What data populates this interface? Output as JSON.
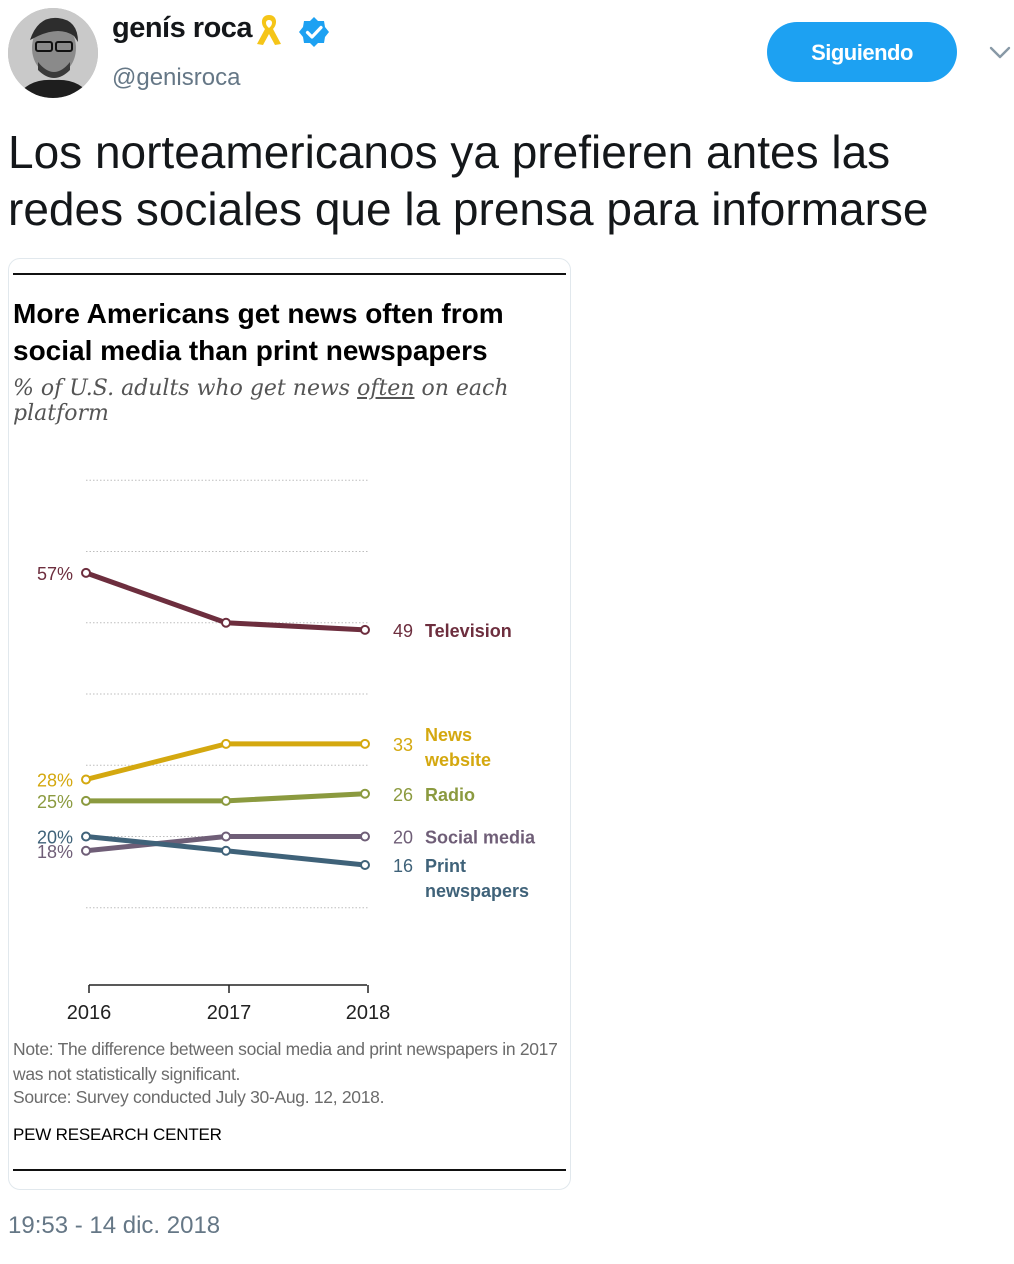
{
  "user": {
    "display_name": "genís roca",
    "handle": "@genisroca",
    "icons": [
      "yellow-ribbon-icon",
      "verified-icon"
    ],
    "colors": {
      "ribbon": "#f5c518",
      "verified": "#1da1f2"
    }
  },
  "follow_button": {
    "label": "Siguiendo",
    "color": "#1da1f2"
  },
  "more_menu": {
    "icon": "chevron-down-icon"
  },
  "tweet": {
    "text_lines": [
      "Los norteamericanos ya prefieren antes las",
      "redes sociales que la prensa para informarse"
    ],
    "timestamp": "19:53 - 14 dic. 2018"
  },
  "media": {
    "title": "More Americans get news often from social media than print newspapers",
    "subtitle_before": "% of U.S. adults who get news ",
    "subtitle_emphasis": "often",
    "subtitle_after": " on each platform",
    "note": "Note: The difference between social media and print newspapers in 2017 was not statistically significant.",
    "source": "Source: Survey conducted July 30-Aug. 12, 2018.",
    "organization": "PEW RESEARCH CENTER"
  },
  "chart_data": {
    "type": "line",
    "title": "More Americans get news often from social media than print newspapers",
    "subtitle": "% of U.S. adults who get news often on each platform",
    "x": [
      "2016",
      "2017",
      "2018"
    ],
    "ylim": [
      0,
      80
    ],
    "grid": true,
    "legend": "direct labels at right end of each line",
    "series": [
      {
        "name": "Television",
        "values": [
          57,
          50,
          49
        ],
        "start_label": "57%",
        "end_label": "49",
        "color": "#6d2e3e"
      },
      {
        "name": "News website",
        "values": [
          28,
          33,
          33
        ],
        "start_label": "28%",
        "end_label": "33",
        "color": "#d4a80f"
      },
      {
        "name": "Radio",
        "values": [
          25,
          25,
          26
        ],
        "start_label": "25%",
        "end_label": "26",
        "color": "#8b9a3f"
      },
      {
        "name": "Social media",
        "values": [
          18,
          20,
          20
        ],
        "start_label": "18%",
        "end_label": "20",
        "color": "#6f5e77"
      },
      {
        "name": "Print newspapers",
        "values": [
          20,
          18,
          16
        ],
        "start_label": "20%",
        "end_label": "16",
        "color": "#3f6279"
      }
    ],
    "series_label_lines": {
      "Television": [
        "Television"
      ],
      "News website": [
        "News",
        "website"
      ],
      "Radio": [
        "Radio"
      ],
      "Social media": [
        "Social media"
      ],
      "Print newspapers": [
        "Print",
        "newspapers"
      ]
    }
  }
}
